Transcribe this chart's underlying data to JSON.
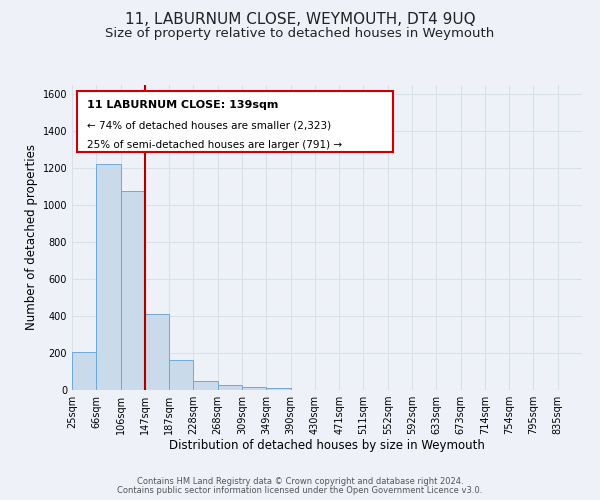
{
  "title": "11, LABURNUM CLOSE, WEYMOUTH, DT4 9UQ",
  "subtitle": "Size of property relative to detached houses in Weymouth",
  "xlabel": "Distribution of detached houses by size in Weymouth",
  "ylabel": "Number of detached properties",
  "bar_labels": [
    "25sqm",
    "66sqm",
    "106sqm",
    "147sqm",
    "187sqm",
    "228sqm",
    "268sqm",
    "309sqm",
    "349sqm",
    "390sqm",
    "430sqm",
    "471sqm",
    "511sqm",
    "552sqm",
    "592sqm",
    "633sqm",
    "673sqm",
    "714sqm",
    "754sqm",
    "795sqm",
    "835sqm"
  ],
  "bar_values": [
    205,
    1225,
    1075,
    410,
    160,
    50,
    25,
    15,
    10,
    0,
    0,
    0,
    0,
    0,
    0,
    0,
    0,
    0,
    0,
    0,
    0
  ],
  "bar_color": "#c9daea",
  "bar_edge_color": "#6fa8d6",
  "ylim": [
    0,
    1650
  ],
  "yticks": [
    0,
    200,
    400,
    600,
    800,
    1000,
    1200,
    1400,
    1600
  ],
  "vline_x": 3,
  "vline_color": "#aa0000",
  "annotation_title": "11 LABURNUM CLOSE: 139sqm",
  "annotation_line1": "← 74% of detached houses are smaller (2,323)",
  "annotation_line2": "25% of semi-detached houses are larger (791) →",
  "footer_line1": "Contains HM Land Registry data © Crown copyright and database right 2024.",
  "footer_line2": "Contains public sector information licensed under the Open Government Licence v3.0.",
  "bg_color": "#eef2f8",
  "grid_color": "#d8e0ea",
  "title_fontsize": 11,
  "subtitle_fontsize": 9.5,
  "xlabel_fontsize": 8.5,
  "ylabel_fontsize": 8.5,
  "tick_fontsize": 7,
  "footer_fontsize": 6
}
